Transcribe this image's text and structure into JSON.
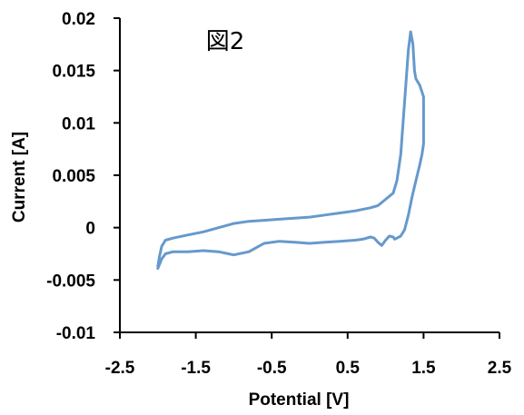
{
  "chart_data": {
    "type": "line",
    "title": "図2",
    "xlabel": "Potential [V]",
    "ylabel": "Current [A]",
    "xlim": [
      -2.5,
      2.5
    ],
    "ylim": [
      -0.01,
      0.02
    ],
    "x_ticks": [
      -2.5,
      -1.5,
      -0.5,
      0.5,
      1.5,
      2.5
    ],
    "x_tick_labels": [
      "-2.5",
      "-1.5",
      "-0.5",
      "0.5",
      "1.5",
      "2.5"
    ],
    "y_ticks": [
      0.02,
      0.015,
      0.01,
      0.005,
      0,
      -0.005,
      -0.01
    ],
    "y_tick_labels": [
      "0.02",
      "0.015",
      "0.01",
      "0.005",
      "0",
      "-0.005",
      "-0.01"
    ],
    "grid": false,
    "legend": false,
    "series": [
      {
        "color": "#6699cc",
        "x": [
          -2.0,
          -1.98,
          -1.95,
          -1.9,
          -1.8,
          -1.6,
          -1.4,
          -1.2,
          -1.0,
          -0.8,
          -0.6,
          -0.4,
          -0.2,
          0.0,
          0.2,
          0.4,
          0.6,
          0.8,
          0.9,
          1.0,
          1.05,
          1.1,
          1.15,
          1.2,
          1.25,
          1.3,
          1.33,
          1.36,
          1.38,
          1.4,
          1.45,
          1.5,
          1.5,
          1.48,
          1.45,
          1.4,
          1.35,
          1.3,
          1.25,
          1.2,
          1.15,
          1.12,
          1.1,
          1.05,
          1.0,
          0.95,
          0.9,
          0.85,
          0.8,
          0.7,
          0.6,
          0.4,
          0.2,
          0.0,
          -0.2,
          -0.4,
          -0.6,
          -0.7,
          -0.8,
          -1.0,
          -1.2,
          -1.4,
          -1.6,
          -1.8,
          -1.9,
          -1.95,
          -2.0
        ],
        "y": [
          -0.0037,
          -0.0028,
          -0.0018,
          -0.0012,
          -0.001,
          -0.0007,
          -0.0004,
          0.0,
          0.0004,
          0.0006,
          0.0007,
          0.0008,
          0.0009,
          0.001,
          0.0012,
          0.0014,
          0.0016,
          0.0019,
          0.0021,
          0.0027,
          0.003,
          0.0033,
          0.0045,
          0.007,
          0.012,
          0.017,
          0.0187,
          0.0175,
          0.015,
          0.0142,
          0.0136,
          0.0125,
          0.008,
          0.007,
          0.006,
          0.0045,
          0.003,
          0.0012,
          -0.0002,
          -0.0008,
          -0.001,
          -0.0011,
          -0.0009,
          -0.0008,
          -0.0012,
          -0.0017,
          -0.0014,
          -0.001,
          -0.0009,
          -0.0011,
          -0.0012,
          -0.0013,
          -0.0014,
          -0.0015,
          -0.0014,
          -0.0013,
          -0.0015,
          -0.0019,
          -0.0023,
          -0.0026,
          -0.0023,
          -0.0022,
          -0.0023,
          -0.0023,
          -0.0025,
          -0.003,
          -0.0039
        ]
      }
    ]
  }
}
